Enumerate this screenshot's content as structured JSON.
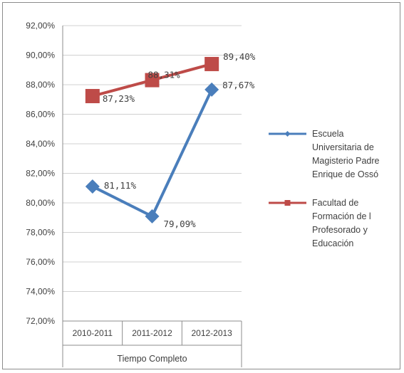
{
  "chart_data": {
    "type": "line",
    "categories": [
      "2010-2011",
      "2011-2012",
      "2012-2013"
    ],
    "category_group": "Tiempo Completo",
    "y_ticks": [
      "72,00%",
      "74,00%",
      "76,00%",
      "78,00%",
      "80,00%",
      "82,00%",
      "84,00%",
      "86,00%",
      "88,00%",
      "90,00%",
      "92,00%"
    ],
    "ylim": [
      72,
      92
    ],
    "grid": true,
    "legend_position": "right",
    "series": [
      {
        "name": "Escuela Universitaria de Magisterio Padre Enrique de Ossó",
        "name_lines": [
          "Escuela",
          "Universitaria de",
          "Magisterio Padre",
          "Enrique de Ossó"
        ],
        "color": "#4a7ebb",
        "marker": "diamond",
        "values": [
          81.11,
          79.09,
          87.67
        ],
        "labels": [
          "81,11%",
          "79,09%",
          "87,67%"
        ]
      },
      {
        "name": "Facultad de Formación del Profesorado y Educación",
        "name_lines": [
          "Facultad de",
          "Formación de l",
          "Profesorado y",
          "Educación"
        ],
        "color": "#be4b48",
        "marker": "square",
        "values": [
          87.23,
          88.31,
          89.4
        ],
        "labels": [
          "87,23%",
          "88,31%",
          "89,40%"
        ]
      }
    ]
  }
}
